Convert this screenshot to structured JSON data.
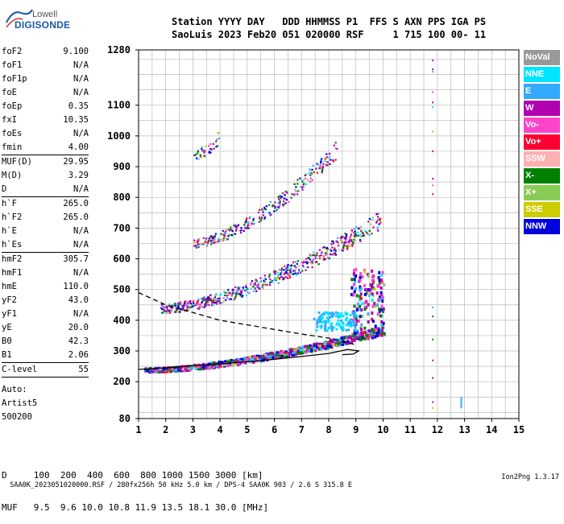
{
  "logo": {
    "brand": "Lowell",
    "product": "DIGISONDE"
  },
  "header": {
    "line1": "Station YYYY DAY   DDD HHMMSS P1  FFS S AXN PPS IGA PS",
    "line2": "SaoLuis 2023 Feb20 051 020000 RSF     1 715 100 00- 11"
  },
  "params": [
    {
      "label": "foF2",
      "value": "9.100",
      "sep": false
    },
    {
      "label": "foF1",
      "value": "N/A",
      "sep": false
    },
    {
      "label": "foF1p",
      "value": "N/A",
      "sep": false
    },
    {
      "label": "foE",
      "value": "N/A",
      "sep": false
    },
    {
      "label": "foEp",
      "value": "0.35",
      "sep": false
    },
    {
      "label": "fxI",
      "value": "10.35",
      "sep": false
    },
    {
      "label": "foEs",
      "value": "N/A",
      "sep": false
    },
    {
      "label": "fmin",
      "value": "4.00",
      "sep": true
    },
    {
      "label": "MUF(D)",
      "value": "29.95",
      "sep": false
    },
    {
      "label": "M(D)",
      "value": "3.29",
      "sep": false
    },
    {
      "label": "D",
      "value": "N/A",
      "sep": true
    },
    {
      "label": "h`F",
      "value": "265.0",
      "sep": false
    },
    {
      "label": "h`F2",
      "value": "265.0",
      "sep": false
    },
    {
      "label": "h`E",
      "value": "N/A",
      "sep": false
    },
    {
      "label": "h`Es",
      "value": "N/A",
      "sep": true
    },
    {
      "label": "hmF2",
      "value": "305.7",
      "sep": false
    },
    {
      "label": "hmF1",
      "value": "N/A",
      "sep": false
    },
    {
      "label": "hmE",
      "value": "110.0",
      "sep": false
    },
    {
      "label": "yF2",
      "value": "43.0",
      "sep": false
    },
    {
      "label": "yF1",
      "value": "N/A",
      "sep": false
    },
    {
      "label": "yE",
      "value": "20.0",
      "sep": false
    },
    {
      "label": "B0",
      "value": "42.3",
      "sep": false
    },
    {
      "label": "B1",
      "value": "2.06",
      "sep": true
    },
    {
      "label": "C-level",
      "value": "55",
      "sep": true
    }
  ],
  "auto": {
    "line1": "Auto:",
    "line2": "Artist5",
    "line3": "500200"
  },
  "legend": [
    {
      "label": "NoVal",
      "color": "#999999"
    },
    {
      "label": "NNE",
      "color": "#00e5ff"
    },
    {
      "label": "E",
      "color": "#33aaff"
    },
    {
      "label": "W",
      "color": "#b000b0"
    },
    {
      "label": "Vo-",
      "color": "#ff44cc"
    },
    {
      "label": "Vo+",
      "color": "#ff0033"
    },
    {
      "label": "SSW",
      "color": "#ffb0b0"
    },
    {
      "label": "X-",
      "color": "#008000"
    },
    {
      "label": "X+",
      "color": "#88cc55"
    },
    {
      "label": "SSE",
      "color": "#cccc00"
    },
    {
      "label": "NNW",
      "color": "#0000dd"
    }
  ],
  "tables": {
    "d_row": "D     100  200  400  600  800 1000 1500 3000 [km]",
    "muf_row": "MUF   9.5  9.6 10.0 10.8 11.9 13.5 18.1 30.0 [MHz]"
  },
  "footer": {
    "left": "SAA0K_2023051020000.RSF / 280fx256h 50 kHz 5.0 km / DPS-4 SAA0K 903 / 2.6 S 315.8 E",
    "right": "Ion2Png 1.3.17"
  },
  "chart_data": {
    "type": "scatter",
    "title": "",
    "xlabel": "",
    "ylabel": "",
    "xlim": [
      1,
      15
    ],
    "ylim": [
      80,
      1280
    ],
    "x_ticks": [
      1,
      2,
      3,
      4,
      5,
      6,
      7,
      8,
      9,
      10,
      11,
      12,
      13,
      14,
      15
    ],
    "y_ticks": [
      80,
      200,
      300,
      400,
      500,
      600,
      700,
      800,
      900,
      1000,
      1100,
      1280
    ],
    "grid": true,
    "traces": [
      {
        "name": "F2 first hop",
        "y_start": 240,
        "y_end": 370,
        "x_start": 1.2,
        "x_end": 10.0
      },
      {
        "name": "F2 second hop",
        "y_start": 440,
        "y_end": 730,
        "x_start": 1.8,
        "x_end": 9.9
      },
      {
        "name": "F2 third hop",
        "y_start": 650,
        "y_end": 960,
        "x_start": 2.9,
        "x_end": 8.3
      },
      {
        "name": "F2 fourth hop",
        "y_start": 940,
        "y_end": 1000,
        "x_start": 3.0,
        "x_end": 4.0
      }
    ],
    "model_curves": [
      {
        "style": "dashed",
        "points": [
          [
            1,
            490
          ],
          [
            2,
            450
          ],
          [
            3,
            425
          ],
          [
            4,
            400
          ],
          [
            5,
            385
          ],
          [
            6,
            370
          ],
          [
            7,
            355
          ],
          [
            8,
            342
          ],
          [
            9,
            320
          ]
        ]
      },
      {
        "style": "solid",
        "points": [
          [
            1,
            240
          ],
          [
            2,
            245
          ],
          [
            3,
            252
          ],
          [
            4,
            258
          ],
          [
            5,
            265
          ],
          [
            6,
            273
          ],
          [
            7,
            282
          ],
          [
            8,
            292
          ],
          [
            8.7,
            305
          ],
          [
            9.1,
            300
          ],
          [
            8.9,
            290
          ],
          [
            8.5,
            288
          ]
        ]
      }
    ]
  }
}
